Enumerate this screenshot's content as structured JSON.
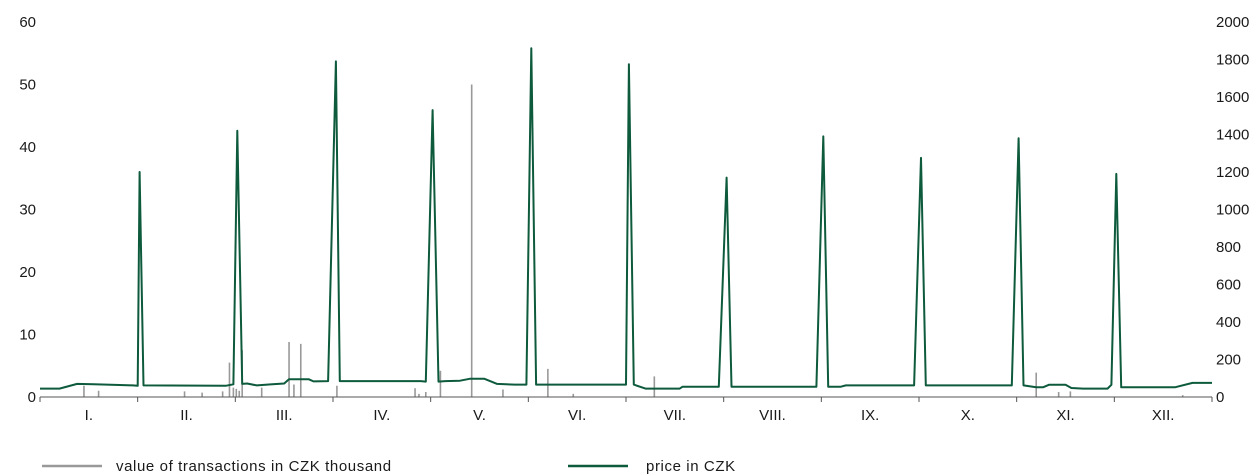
{
  "chart_data": {
    "type": "line",
    "categories": [
      "I.",
      "II.",
      "III.",
      "IV.",
      "V.",
      "VI.",
      "VII.",
      "VIII.",
      "IX.",
      "X.",
      "XI.",
      "XII."
    ],
    "y_left": {
      "min": 0,
      "max": 60,
      "ticks": [
        0,
        10,
        20,
        30,
        40,
        50,
        60
      ]
    },
    "y_right": {
      "min": 0,
      "max": 2000,
      "ticks": [
        0,
        200,
        400,
        600,
        800,
        1000,
        1200,
        1400,
        1600,
        1800,
        2000
      ]
    },
    "grid": false,
    "legend_position": "bottom",
    "series": [
      {
        "name": "value of transactions in CZK thousand",
        "kind": "bars",
        "axis": "left",
        "color": "#999999",
        "points": [
          {
            "x": 0.45,
            "y": 1.8
          },
          {
            "x": 0.6,
            "y": 1.0
          },
          {
            "x": 1.48,
            "y": 0.9
          },
          {
            "x": 1.66,
            "y": 0.7
          },
          {
            "x": 1.87,
            "y": 0.9
          },
          {
            "x": 1.94,
            "y": 5.5
          },
          {
            "x": 1.98,
            "y": 1.5
          },
          {
            "x": 2.01,
            "y": 1.3
          },
          {
            "x": 2.04,
            "y": 1.0
          },
          {
            "x": 2.07,
            "y": 7.5
          },
          {
            "x": 2.27,
            "y": 1.5
          },
          {
            "x": 2.55,
            "y": 8.8
          },
          {
            "x": 2.6,
            "y": 2.0
          },
          {
            "x": 2.67,
            "y": 8.5
          },
          {
            "x": 3.04,
            "y": 1.8
          },
          {
            "x": 3.84,
            "y": 1.4
          },
          {
            "x": 3.88,
            "y": 0.5
          },
          {
            "x": 3.95,
            "y": 0.8
          },
          {
            "x": 4.1,
            "y": 4.2
          },
          {
            "x": 4.42,
            "y": 50.0
          },
          {
            "x": 4.74,
            "y": 1.2
          },
          {
            "x": 5.2,
            "y": 4.5
          },
          {
            "x": 5.46,
            "y": 0.5
          },
          {
            "x": 6.29,
            "y": 3.3
          },
          {
            "x": 10.2,
            "y": 3.9
          },
          {
            "x": 10.43,
            "y": 0.8
          },
          {
            "x": 10.55,
            "y": 0.9
          },
          {
            "x": 11.7,
            "y": 0.3
          }
        ]
      },
      {
        "name": "price in CZK",
        "kind": "line",
        "axis": "right",
        "color": "#0d5a3c",
        "points": [
          {
            "x": 0.0,
            "y": 45
          },
          {
            "x": 0.2,
            "y": 45
          },
          {
            "x": 0.38,
            "y": 70
          },
          {
            "x": 0.55,
            "y": 68
          },
          {
            "x": 0.95,
            "y": 62
          },
          {
            "x": 1.0,
            "y": 60
          },
          {
            "x": 1.02,
            "y": 1200
          },
          {
            "x": 1.06,
            "y": 62
          },
          {
            "x": 1.9,
            "y": 60
          },
          {
            "x": 1.98,
            "y": 68
          },
          {
            "x": 2.02,
            "y": 1420
          },
          {
            "x": 2.07,
            "y": 70
          },
          {
            "x": 2.12,
            "y": 72
          },
          {
            "x": 2.22,
            "y": 62
          },
          {
            "x": 2.38,
            "y": 68
          },
          {
            "x": 2.5,
            "y": 72
          },
          {
            "x": 2.55,
            "y": 95
          },
          {
            "x": 2.75,
            "y": 95
          },
          {
            "x": 2.8,
            "y": 83
          },
          {
            "x": 2.95,
            "y": 85
          },
          {
            "x": 3.03,
            "y": 1790
          },
          {
            "x": 3.07,
            "y": 85
          },
          {
            "x": 3.9,
            "y": 85
          },
          {
            "x": 3.95,
            "y": 82
          },
          {
            "x": 4.02,
            "y": 1530
          },
          {
            "x": 4.08,
            "y": 82
          },
          {
            "x": 4.15,
            "y": 85
          },
          {
            "x": 4.3,
            "y": 87
          },
          {
            "x": 4.4,
            "y": 97
          },
          {
            "x": 4.55,
            "y": 97
          },
          {
            "x": 4.68,
            "y": 70
          },
          {
            "x": 4.86,
            "y": 66
          },
          {
            "x": 4.98,
            "y": 66
          },
          {
            "x": 5.03,
            "y": 1860
          },
          {
            "x": 5.08,
            "y": 66
          },
          {
            "x": 6.0,
            "y": 66
          },
          {
            "x": 6.03,
            "y": 1775
          },
          {
            "x": 6.08,
            "y": 66
          },
          {
            "x": 6.2,
            "y": 45
          },
          {
            "x": 6.35,
            "y": 45
          },
          {
            "x": 6.55,
            "y": 45
          },
          {
            "x": 6.58,
            "y": 55
          },
          {
            "x": 6.95,
            "y": 55
          },
          {
            "x": 7.03,
            "y": 1170
          },
          {
            "x": 7.08,
            "y": 55
          },
          {
            "x": 7.95,
            "y": 55
          },
          {
            "x": 8.02,
            "y": 1390
          },
          {
            "x": 8.07,
            "y": 55
          },
          {
            "x": 8.2,
            "y": 55
          },
          {
            "x": 8.25,
            "y": 62
          },
          {
            "x": 8.95,
            "y": 62
          },
          {
            "x": 9.02,
            "y": 1275
          },
          {
            "x": 9.07,
            "y": 62
          },
          {
            "x": 9.95,
            "y": 62
          },
          {
            "x": 10.02,
            "y": 1380
          },
          {
            "x": 10.07,
            "y": 62
          },
          {
            "x": 10.2,
            "y": 52
          },
          {
            "x": 10.27,
            "y": 52
          },
          {
            "x": 10.33,
            "y": 65
          },
          {
            "x": 10.5,
            "y": 65
          },
          {
            "x": 10.56,
            "y": 48
          },
          {
            "x": 10.68,
            "y": 45
          },
          {
            "x": 10.93,
            "y": 45
          },
          {
            "x": 10.97,
            "y": 65
          },
          {
            "x": 11.02,
            "y": 1190
          },
          {
            "x": 11.07,
            "y": 52
          },
          {
            "x": 11.55,
            "y": 52
          },
          {
            "x": 11.62,
            "y": 52
          },
          {
            "x": 11.8,
            "y": 75
          },
          {
            "x": 12.0,
            "y": 75
          }
        ]
      }
    ]
  }
}
